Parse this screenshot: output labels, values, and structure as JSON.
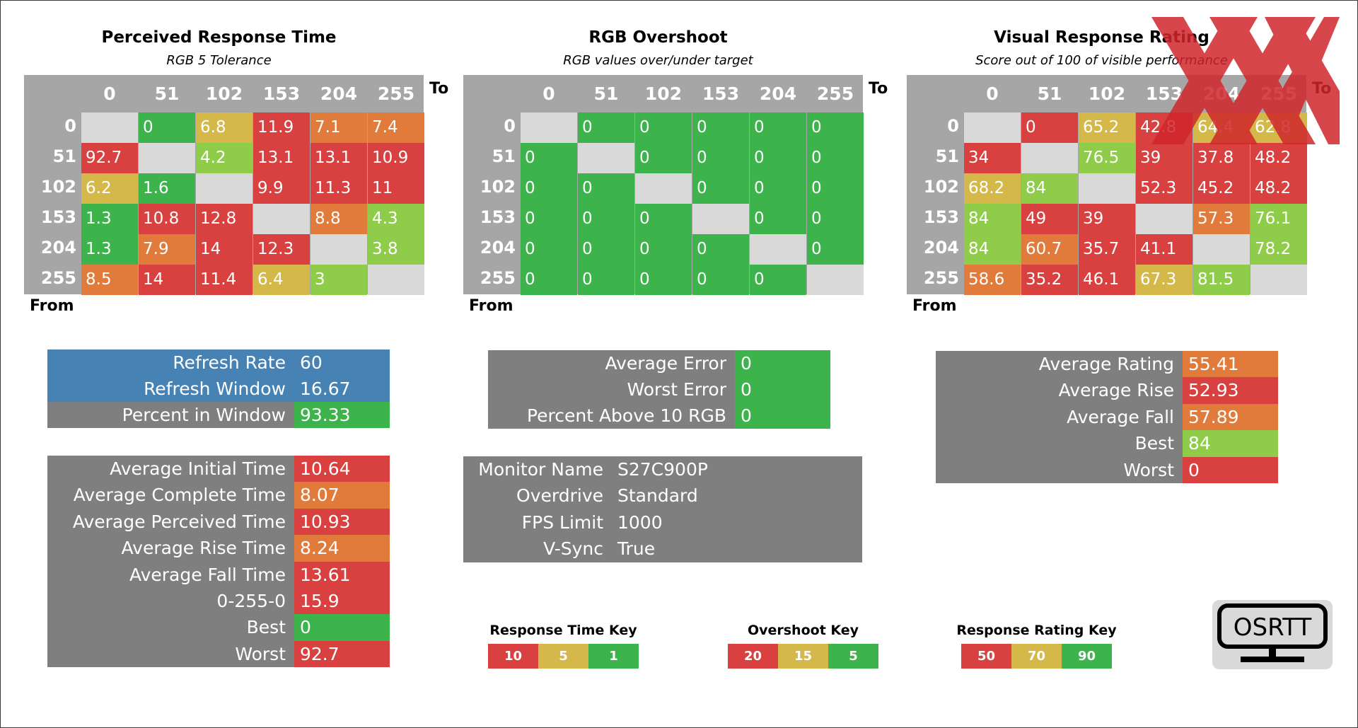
{
  "colors": {
    "red": "#d94040",
    "orange": "#e07b3c",
    "yellow": "#d4b84a",
    "lightgreen": "#8fcc4a",
    "green": "#3cb44b",
    "gray_panel": "#7f7f7f",
    "gray_grid": "#a6a6a6",
    "blue": "#4682b4",
    "diag": "#d9d9d9"
  },
  "chart_data": [
    {
      "type": "heatmap",
      "title": "Perceived Response Time",
      "subtitle": "RGB 5 Tolerance",
      "xlabel": "To",
      "ylabel": "From",
      "columns": [
        "0",
        "51",
        "102",
        "153",
        "204",
        "255"
      ],
      "rows": [
        "0",
        "51",
        "102",
        "153",
        "204",
        "255"
      ],
      "values": [
        [
          "",
          "0",
          "6.8",
          "11.9",
          "7.1",
          "7.4"
        ],
        [
          "92.7",
          "",
          "4.2",
          "13.1",
          "13.1",
          "10.9"
        ],
        [
          "6.2",
          "1.6",
          "",
          "9.9",
          "11.3",
          "11"
        ],
        [
          "1.3",
          "10.8",
          "12.8",
          "",
          "8.8",
          "4.3"
        ],
        [
          "1.3",
          "7.9",
          "14",
          "12.3",
          "",
          "3.8"
        ],
        [
          "8.5",
          "14",
          "11.4",
          "6.4",
          "3",
          ""
        ]
      ],
      "cell_colors": [
        [
          "diag",
          "green",
          "yellow",
          "red",
          "orange",
          "orange"
        ],
        [
          "red",
          "diag",
          "lightgreen",
          "red",
          "red",
          "red"
        ],
        [
          "yellow",
          "green",
          "diag",
          "red",
          "red",
          "red"
        ],
        [
          "green",
          "red",
          "red",
          "diag",
          "orange",
          "lightgreen"
        ],
        [
          "green",
          "orange",
          "red",
          "red",
          "diag",
          "lightgreen"
        ],
        [
          "orange",
          "red",
          "red",
          "yellow",
          "lightgreen",
          "diag"
        ]
      ]
    },
    {
      "type": "heatmap",
      "title": "RGB Overshoot",
      "subtitle": "RGB values over/under target",
      "xlabel": "To",
      "ylabel": "From",
      "columns": [
        "0",
        "51",
        "102",
        "153",
        "204",
        "255"
      ],
      "rows": [
        "0",
        "51",
        "102",
        "153",
        "204",
        "255"
      ],
      "values": [
        [
          "",
          "0",
          "0",
          "0",
          "0",
          "0"
        ],
        [
          "0",
          "",
          "0",
          "0",
          "0",
          "0"
        ],
        [
          "0",
          "0",
          "",
          "0",
          "0",
          "0"
        ],
        [
          "0",
          "0",
          "0",
          "",
          "0",
          "0"
        ],
        [
          "0",
          "0",
          "0",
          "0",
          "",
          "0"
        ],
        [
          "0",
          "0",
          "0",
          "0",
          "0",
          ""
        ]
      ],
      "cell_colors": [
        [
          "diag",
          "green",
          "green",
          "green",
          "green",
          "green"
        ],
        [
          "green",
          "diag",
          "green",
          "green",
          "green",
          "green"
        ],
        [
          "green",
          "green",
          "diag",
          "green",
          "green",
          "green"
        ],
        [
          "green",
          "green",
          "green",
          "diag",
          "green",
          "green"
        ],
        [
          "green",
          "green",
          "green",
          "green",
          "diag",
          "green"
        ],
        [
          "green",
          "green",
          "green",
          "green",
          "green",
          "diag"
        ]
      ]
    },
    {
      "type": "heatmap",
      "title": "Visual Response Rating",
      "subtitle": "Score out of 100 of visible performance",
      "xlabel": "To",
      "ylabel": "From",
      "columns": [
        "0",
        "51",
        "102",
        "153",
        "204",
        "255"
      ],
      "rows": [
        "0",
        "51",
        "102",
        "153",
        "204",
        "255"
      ],
      "values": [
        [
          "",
          "0",
          "65.2",
          "42.8",
          "64.4",
          "62.8"
        ],
        [
          "34",
          "",
          "76.5",
          "39",
          "37.8",
          "48.2"
        ],
        [
          "68.2",
          "84",
          "",
          "52.3",
          "45.2",
          "48.2"
        ],
        [
          "84",
          "49",
          "39",
          "",
          "57.3",
          "76.1"
        ],
        [
          "84",
          "60.7",
          "35.7",
          "41.1",
          "",
          "78.2"
        ],
        [
          "58.6",
          "35.2",
          "46.1",
          "67.3",
          "81.5",
          ""
        ]
      ],
      "cell_colors": [
        [
          "diag",
          "red",
          "yellow",
          "red",
          "yellow",
          "yellow"
        ],
        [
          "red",
          "diag",
          "lightgreen",
          "red",
          "red",
          "red"
        ],
        [
          "yellow",
          "lightgreen",
          "diag",
          "red",
          "red",
          "red"
        ],
        [
          "lightgreen",
          "red",
          "red",
          "diag",
          "orange",
          "lightgreen"
        ],
        [
          "lightgreen",
          "orange",
          "red",
          "red",
          "diag",
          "lightgreen"
        ],
        [
          "orange",
          "red",
          "red",
          "yellow",
          "lightgreen",
          "diag"
        ]
      ]
    }
  ],
  "refresh_panel": {
    "rows": [
      {
        "label": "Refresh Rate",
        "value": "60",
        "bg": "blue",
        "vbg": "blue"
      },
      {
        "label": "Refresh Window",
        "value": "16.67",
        "bg": "blue",
        "vbg": "blue"
      },
      {
        "label": "Percent in Window",
        "value": "93.33",
        "bg": "gray_panel",
        "vbg": "green"
      }
    ]
  },
  "error_panel": {
    "rows": [
      {
        "label": "Average Error",
        "value": "0",
        "vbg": "green"
      },
      {
        "label": "Worst Error",
        "value": "0",
        "vbg": "green"
      },
      {
        "label": "Percent Above 10 RGB",
        "value": "0",
        "vbg": "green"
      }
    ]
  },
  "rating_panel": {
    "rows": [
      {
        "label": "Average Rating",
        "value": "55.41",
        "vbg": "orange"
      },
      {
        "label": "Average Rise",
        "value": "52.93",
        "vbg": "red"
      },
      {
        "label": "Average Fall",
        "value": "57.89",
        "vbg": "orange"
      },
      {
        "label": "Best",
        "value": "84",
        "vbg": "lightgreen"
      },
      {
        "label": "Worst",
        "value": "0",
        "vbg": "red"
      }
    ]
  },
  "time_panel": {
    "rows": [
      {
        "label": "Average Initial Time",
        "value": "10.64",
        "vbg": "red"
      },
      {
        "label": "Average Complete Time",
        "value": "8.07",
        "vbg": "orange"
      },
      {
        "label": "Average Perceived Time",
        "value": "10.93",
        "vbg": "red"
      },
      {
        "label": "Average Rise Time",
        "value": "8.24",
        "vbg": "orange"
      },
      {
        "label": "Average Fall Time",
        "value": "13.61",
        "vbg": "red"
      },
      {
        "label": "0-255-0",
        "value": "15.9",
        "vbg": "red"
      },
      {
        "label": "Best",
        "value": "0",
        "vbg": "green"
      },
      {
        "label": "Worst",
        "value": "92.7",
        "vbg": "red"
      }
    ]
  },
  "monitor_panel": {
    "rows": [
      {
        "label": "Monitor Name",
        "value": "S27C900P"
      },
      {
        "label": "Overdrive",
        "value": "Standard"
      },
      {
        "label": "FPS Limit",
        "value": "1000"
      },
      {
        "label": "V-Sync",
        "value": "True"
      }
    ]
  },
  "keys": [
    {
      "title": "Response Time Key",
      "cells": [
        {
          "v": "10",
          "c": "red"
        },
        {
          "v": "5",
          "c": "yellow"
        },
        {
          "v": "1",
          "c": "green"
        }
      ]
    },
    {
      "title": "Overshoot Key",
      "cells": [
        {
          "v": "20",
          "c": "red"
        },
        {
          "v": "15",
          "c": "yellow"
        },
        {
          "v": "5",
          "c": "green"
        }
      ]
    },
    {
      "title": "Response Rating Key",
      "cells": [
        {
          "v": "50",
          "c": "red"
        },
        {
          "v": "70",
          "c": "yellow"
        },
        {
          "v": "90",
          "c": "green"
        }
      ]
    }
  ],
  "logo": {
    "text": "OSRTT"
  },
  "watermark": {
    "icon": "red-x-watermark-icon"
  }
}
